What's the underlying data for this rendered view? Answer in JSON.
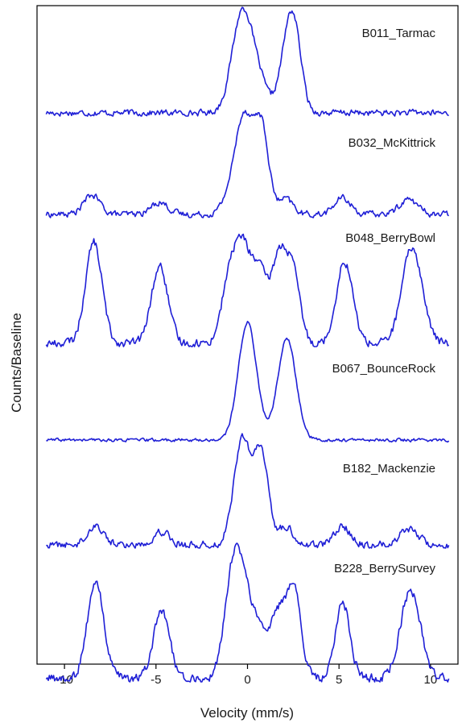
{
  "chart_data": {
    "type": "line",
    "title": "",
    "xlabel": "Velocity (mm/s)",
    "ylabel": "Counts/Baseline",
    "xlim": [
      -11.5,
      11.5
    ],
    "x_ticks": [
      -10,
      -5,
      0,
      5,
      10
    ],
    "x_tick_labels": [
      "-10",
      "-5",
      "0",
      "5",
      "10"
    ],
    "line_color": "#1f1fd6",
    "grid": false,
    "legend": "none",
    "stacked_offset_spectra": true,
    "x_range_data": [
      -11,
      11
    ],
    "series": [
      {
        "name": "B011_Tarmac",
        "peaks": [
          {
            "center": -0.3,
            "height": 3.6,
            "width": 0.55
          },
          {
            "center": 0.6,
            "height": 1.0,
            "width": 0.5
          },
          {
            "center": 2.05,
            "height": 1.5,
            "width": 0.4
          },
          {
            "center": 2.55,
            "height": 2.9,
            "width": 0.4
          }
        ],
        "noise": 0.1
      },
      {
        "name": "B032_McKittrick",
        "peaks": [
          {
            "center": -8.5,
            "height": 0.7,
            "width": 0.45
          },
          {
            "center": -4.8,
            "height": 0.45,
            "width": 0.45
          },
          {
            "center": -1.0,
            "height": 0.6,
            "width": 0.4
          },
          {
            "center": -0.2,
            "height": 3.5,
            "width": 0.45
          },
          {
            "center": 0.75,
            "height": 3.2,
            "width": 0.4
          },
          {
            "center": 2.1,
            "height": 0.55,
            "width": 0.4
          },
          {
            "center": 5.2,
            "height": 0.6,
            "width": 0.45
          },
          {
            "center": 8.8,
            "height": 0.55,
            "width": 0.5
          }
        ],
        "noise": 0.1
      },
      {
        "name": "B048_BerryBowl",
        "peaks": [
          {
            "center": -8.4,
            "height": 3.7,
            "width": 0.45
          },
          {
            "center": -4.8,
            "height": 2.8,
            "width": 0.45
          },
          {
            "center": -1.1,
            "height": 1.6,
            "width": 0.4
          },
          {
            "center": -0.3,
            "height": 3.6,
            "width": 0.5
          },
          {
            "center": 0.7,
            "height": 2.3,
            "width": 0.4
          },
          {
            "center": 1.6,
            "height": 2.4,
            "width": 0.35
          },
          {
            "center": 2.1,
            "height": 1.9,
            "width": 0.35
          },
          {
            "center": 2.6,
            "height": 1.9,
            "width": 0.35
          },
          {
            "center": 5.3,
            "height": 3.0,
            "width": 0.45
          },
          {
            "center": 9.0,
            "height": 3.5,
            "width": 0.55
          }
        ],
        "noise": 0.14
      },
      {
        "name": "B067_BounceRock",
        "peaks": [
          {
            "center": 0.0,
            "height": 4.3,
            "width": 0.5
          },
          {
            "center": 2.15,
            "height": 3.7,
            "width": 0.5
          }
        ],
        "noise": 0.05
      },
      {
        "name": "B182_Mackenzie",
        "peaks": [
          {
            "center": -8.3,
            "height": 0.7,
            "width": 0.45
          },
          {
            "center": -4.7,
            "height": 0.5,
            "width": 0.45
          },
          {
            "center": -0.3,
            "height": 3.8,
            "width": 0.45
          },
          {
            "center": 0.75,
            "height": 3.3,
            "width": 0.4
          },
          {
            "center": 2.1,
            "height": 0.65,
            "width": 0.4
          },
          {
            "center": 5.2,
            "height": 0.65,
            "width": 0.45
          },
          {
            "center": 8.8,
            "height": 0.6,
            "width": 0.5
          }
        ],
        "noise": 0.12
      },
      {
        "name": "B228_BerrySurvey",
        "peaks": [
          {
            "center": -8.3,
            "height": 3.5,
            "width": 0.45
          },
          {
            "center": -4.7,
            "height": 2.4,
            "width": 0.45
          },
          {
            "center": -1.0,
            "height": 1.8,
            "width": 0.4
          },
          {
            "center": -0.4,
            "height": 4.0,
            "width": 0.5
          },
          {
            "center": 0.6,
            "height": 1.6,
            "width": 0.4
          },
          {
            "center": 1.6,
            "height": 2.2,
            "width": 0.4
          },
          {
            "center": 2.5,
            "height": 3.4,
            "width": 0.4
          },
          {
            "center": 5.2,
            "height": 2.8,
            "width": 0.4
          },
          {
            "center": 8.9,
            "height": 3.2,
            "width": 0.55
          }
        ],
        "noise": 0.15
      }
    ]
  }
}
